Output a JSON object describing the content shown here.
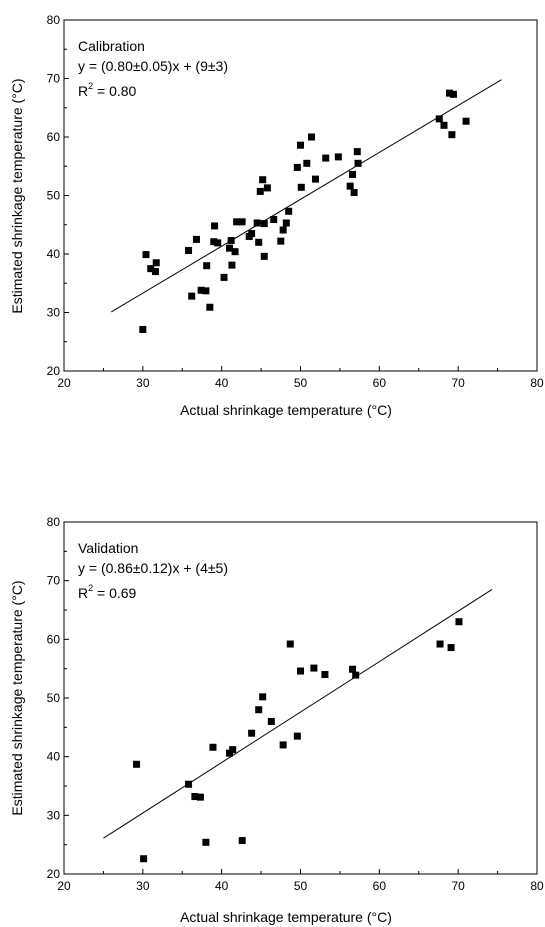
{
  "charts": [
    {
      "panel_label": "Calibration",
      "equation": "y = (0.80±0.05)x + (9±3)",
      "r2_prefix": "R",
      "r2_exp": "2",
      "r2_value": " = 0.80",
      "xlabel": "Actual shrinkage temperature (°C)",
      "ylabel": "Estimated shrinkage temperature (°C)"
    },
    {
      "panel_label": "Validation",
      "equation": "y = (0.86±0.12)x + (4±5)",
      "r2_prefix": "R",
      "r2_exp": "2",
      "r2_value": " = 0.69",
      "xlabel": "Actual shrinkage temperature (°C)",
      "ylabel": "Estimated shrinkage temperature (°C)"
    }
  ],
  "chart_data": [
    {
      "type": "scatter",
      "title": "",
      "xlabel": "Actual shrinkage temperature (°C)",
      "ylabel": "Estimated shrinkage temperature (°C)",
      "xlim": [
        20,
        80
      ],
      "ylim": [
        20,
        80
      ],
      "xticks": [
        20,
        30,
        40,
        50,
        60,
        70,
        80
      ],
      "yticks": [
        20,
        30,
        40,
        50,
        60,
        70,
        80
      ],
      "grid": false,
      "annotations": [
        "Calibration",
        "y = (0.80±0.05)x + (9±3)",
        "R2 = 0.80"
      ],
      "fit_line": {
        "x": [
          26,
          75.5
        ],
        "y": [
          30.1,
          69.8
        ]
      },
      "points": [
        [
          30.0,
          27.1
        ],
        [
          30.4,
          39.9
        ],
        [
          31.0,
          37.5
        ],
        [
          31.6,
          37.0
        ],
        [
          31.7,
          38.5
        ],
        [
          35.8,
          40.6
        ],
        [
          36.2,
          32.8
        ],
        [
          36.8,
          42.5
        ],
        [
          37.4,
          33.8
        ],
        [
          38.0,
          33.7
        ],
        [
          38.1,
          38.0
        ],
        [
          38.5,
          30.9
        ],
        [
          39.0,
          42.1
        ],
        [
          39.1,
          44.8
        ],
        [
          39.5,
          41.9
        ],
        [
          40.3,
          36.0
        ],
        [
          41.0,
          41.0
        ],
        [
          41.2,
          42.3
        ],
        [
          41.3,
          38.1
        ],
        [
          41.7,
          40.4
        ],
        [
          41.9,
          45.5
        ],
        [
          42.6,
          45.5
        ],
        [
          43.5,
          43.0
        ],
        [
          43.8,
          43.5
        ],
        [
          44.5,
          45.3
        ],
        [
          44.7,
          42.0
        ],
        [
          44.9,
          50.7
        ],
        [
          45.2,
          52.7
        ],
        [
          45.4,
          45.2
        ],
        [
          45.4,
          39.6
        ],
        [
          45.8,
          51.3
        ],
        [
          46.6,
          45.9
        ],
        [
          47.5,
          42.2
        ],
        [
          47.8,
          44.1
        ],
        [
          48.2,
          45.3
        ],
        [
          48.5,
          47.3
        ],
        [
          49.6,
          54.8
        ],
        [
          50.0,
          58.6
        ],
        [
          50.1,
          51.4
        ],
        [
          50.8,
          55.5
        ],
        [
          51.4,
          60.0
        ],
        [
          51.9,
          52.8
        ],
        [
          53.2,
          56.4
        ],
        [
          54.8,
          56.6
        ],
        [
          56.3,
          51.6
        ],
        [
          56.6,
          53.6
        ],
        [
          56.8,
          50.5
        ],
        [
          57.2,
          57.5
        ],
        [
          57.3,
          55.5
        ],
        [
          67.6,
          63.1
        ],
        [
          68.2,
          62.0
        ],
        [
          68.9,
          67.5
        ],
        [
          69.2,
          60.4
        ],
        [
          69.4,
          67.3
        ],
        [
          71.0,
          62.7
        ]
      ]
    },
    {
      "type": "scatter",
      "title": "",
      "xlabel": "Actual shrinkage temperature (°C)",
      "ylabel": "Estimated shrinkage temperature (°C)",
      "xlim": [
        20,
        80
      ],
      "ylim": [
        20,
        80
      ],
      "xticks": [
        20,
        30,
        40,
        50,
        60,
        70,
        80
      ],
      "yticks": [
        20,
        30,
        40,
        50,
        60,
        70,
        80
      ],
      "grid": false,
      "annotations": [
        "Validation",
        "y = (0.86±0.12)x + (4±5)",
        "R2 = 0.69"
      ],
      "fit_line": {
        "x": [
          25,
          74.3
        ],
        "y": [
          26.1,
          68.5
        ]
      },
      "points": [
        [
          29.2,
          38.7
        ],
        [
          30.1,
          22.6
        ],
        [
          35.8,
          35.3
        ],
        [
          36.6,
          33.2
        ],
        [
          37.3,
          33.1
        ],
        [
          38.0,
          25.4
        ],
        [
          38.9,
          41.6
        ],
        [
          41.0,
          40.6
        ],
        [
          41.4,
          41.2
        ],
        [
          42.6,
          25.7
        ],
        [
          43.8,
          44.0
        ],
        [
          44.7,
          48.0
        ],
        [
          45.2,
          50.2
        ],
        [
          46.3,
          46.0
        ],
        [
          47.8,
          42.0
        ],
        [
          48.7,
          59.2
        ],
        [
          49.6,
          43.5
        ],
        [
          50.0,
          54.6
        ],
        [
          51.7,
          55.1
        ],
        [
          53.1,
          54.0
        ],
        [
          56.6,
          54.9
        ],
        [
          57.0,
          53.9
        ],
        [
          67.7,
          59.2
        ],
        [
          69.1,
          58.6
        ],
        [
          70.1,
          63.0
        ]
      ]
    }
  ]
}
